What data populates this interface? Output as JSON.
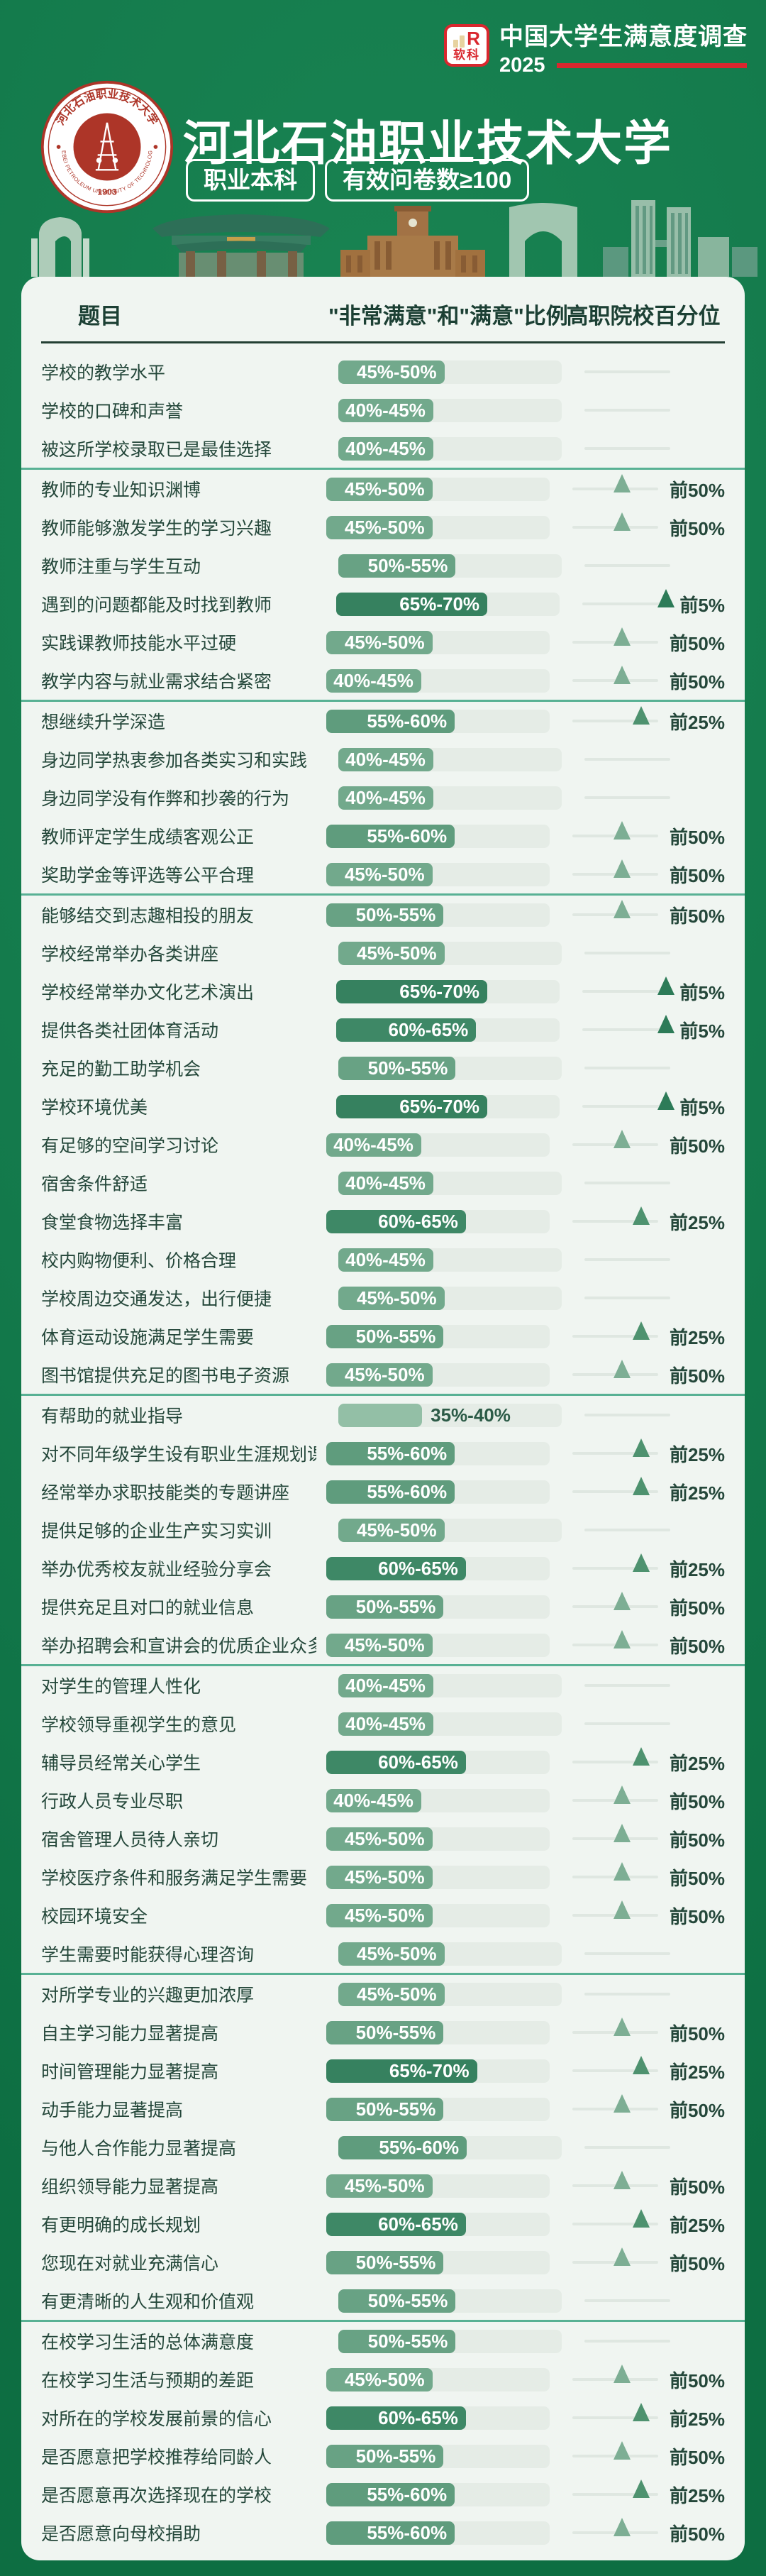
{
  "brand": {
    "logo_text": "软科",
    "logo_letter": "R",
    "survey_title": "中国大学生满意度调查",
    "year": "2025"
  },
  "university": {
    "name": "河北石油职业技术大学",
    "seal_top_text": "河北石油职业技术大学",
    "seal_bottom_text": "HEBEI PETROLEUM UNIVERSITY OF TECHNOLOGY",
    "seal_year": "1903"
  },
  "badges": [
    "职业本科",
    "有效问卷数≥100"
  ],
  "table": {
    "col_question": "题目",
    "col_ratio": "\"非常满意\"和\"满意\"比例",
    "col_percentile": "高职院校百分位"
  },
  "colors": {
    "page_bg": "#13794b",
    "card_bg": "#f0f5f1",
    "accent_red": "#d9272e",
    "seal_red": "#ad3528",
    "text_dark": "#24473a",
    "bar_track": "#e5ece6",
    "bar_label_inside": "#ffffff",
    "bar_label_outside": "#2c5b47",
    "divider": "#58b194",
    "header_rule": "#233f33",
    "pct_line": "#dfe7e1",
    "fill_by_low": {
      "35": "#93bfa6",
      "40": "#72a98c",
      "45": "#72a98c",
      "50": "#68a284",
      "55": "#5f9c7d",
      "60": "#3e8866",
      "65": "#36815f"
    },
    "tier_colors": {
      "前5%": "#2d7b58",
      "前25%": "#4e926f",
      "前50%": "#7dae94"
    },
    "tier_positions": {
      "前5%": 97,
      "前25%": 80,
      "前50%": 58
    }
  },
  "chart_data": {
    "type": "bar",
    "unit": "%",
    "value_axis": "\"非常满意\"和\"满意\"比例",
    "percentile_axis": "高职院校百分位",
    "sections": [
      {
        "rows": [
          {
            "label": "学校的教学水平",
            "range": "45%-50%",
            "low": 45,
            "high": 50,
            "percentile": null
          },
          {
            "label": "学校的口碑和声誉",
            "range": "40%-45%",
            "low": 40,
            "high": 45,
            "percentile": null
          },
          {
            "label": "被这所学校录取已是最佳选择",
            "range": "40%-45%",
            "low": 40,
            "high": 45,
            "percentile": null
          }
        ]
      },
      {
        "rows": [
          {
            "label": "教师的专业知识渊博",
            "range": "45%-50%",
            "low": 45,
            "high": 50,
            "percentile": "前50%"
          },
          {
            "label": "教师能够激发学生的学习兴趣",
            "range": "45%-50%",
            "low": 45,
            "high": 50,
            "percentile": "前50%"
          },
          {
            "label": "教师注重与学生互动",
            "range": "50%-55%",
            "low": 50,
            "high": 55,
            "percentile": null
          },
          {
            "label": "遇到的问题都能及时找到教师",
            "range": "65%-70%",
            "low": 65,
            "high": 70,
            "percentile": "前5%"
          },
          {
            "label": "实践课教师技能水平过硬",
            "range": "45%-50%",
            "low": 45,
            "high": 50,
            "percentile": "前50%"
          },
          {
            "label": "教学内容与就业需求结合紧密",
            "range": "40%-45%",
            "low": 40,
            "high": 45,
            "percentile": "前50%"
          }
        ]
      },
      {
        "rows": [
          {
            "label": "想继续升学深造",
            "range": "55%-60%",
            "low": 55,
            "high": 60,
            "percentile": "前25%"
          },
          {
            "label": "身边同学热衷参加各类实习和实践",
            "range": "40%-45%",
            "low": 40,
            "high": 45,
            "percentile": null
          },
          {
            "label": "身边同学没有作弊和抄袭的行为",
            "range": "40%-45%",
            "low": 40,
            "high": 45,
            "percentile": null
          },
          {
            "label": "教师评定学生成绩客观公正",
            "range": "55%-60%",
            "low": 55,
            "high": 60,
            "percentile": "前50%"
          },
          {
            "label": "奖助学金等评选等公平合理",
            "range": "45%-50%",
            "low": 45,
            "high": 50,
            "percentile": "前50%"
          }
        ]
      },
      {
        "rows": [
          {
            "label": "能够结交到志趣相投的朋友",
            "range": "50%-55%",
            "low": 50,
            "high": 55,
            "percentile": "前50%"
          },
          {
            "label": "学校经常举办各类讲座",
            "range": "45%-50%",
            "low": 45,
            "high": 50,
            "percentile": null
          },
          {
            "label": "学校经常举办文化艺术演出",
            "range": "65%-70%",
            "low": 65,
            "high": 70,
            "percentile": "前5%"
          },
          {
            "label": "提供各类社团体育活动",
            "range": "60%-65%",
            "low": 60,
            "high": 65,
            "percentile": "前5%"
          },
          {
            "label": "充足的勤工助学机会",
            "range": "50%-55%",
            "low": 50,
            "high": 55,
            "percentile": null
          },
          {
            "label": "学校环境优美",
            "range": "65%-70%",
            "low": 65,
            "high": 70,
            "percentile": "前5%"
          },
          {
            "label": "有足够的空间学习讨论",
            "range": "40%-45%",
            "low": 40,
            "high": 45,
            "percentile": "前50%"
          },
          {
            "label": "宿舍条件舒适",
            "range": "40%-45%",
            "low": 40,
            "high": 45,
            "percentile": null
          },
          {
            "label": "食堂食物选择丰富",
            "range": "60%-65%",
            "low": 60,
            "high": 65,
            "percentile": "前25%"
          },
          {
            "label": "校内购物便利、价格合理",
            "range": "40%-45%",
            "low": 40,
            "high": 45,
            "percentile": null
          },
          {
            "label": "学校周边交通发达，出行便捷",
            "range": "45%-50%",
            "low": 45,
            "high": 50,
            "percentile": null
          },
          {
            "label": "体育运动设施满足学生需要",
            "range": "50%-55%",
            "low": 50,
            "high": 55,
            "percentile": "前25%"
          },
          {
            "label": "图书馆提供充足的图书电子资源",
            "range": "45%-50%",
            "low": 45,
            "high": 50,
            "percentile": "前50%"
          }
        ]
      },
      {
        "rows": [
          {
            "label": "有帮助的就业指导",
            "range": "35%-40%",
            "low": 35,
            "high": 40,
            "percentile": null
          },
          {
            "label": "对不同年级学生设有职业生涯规划课",
            "range": "55%-60%",
            "low": 55,
            "high": 60,
            "percentile": "前25%"
          },
          {
            "label": "经常举办求职技能类的专题讲座",
            "range": "55%-60%",
            "low": 55,
            "high": 60,
            "percentile": "前25%"
          },
          {
            "label": "提供足够的企业生产实习实训",
            "range": "45%-50%",
            "low": 45,
            "high": 50,
            "percentile": null
          },
          {
            "label": "举办优秀校友就业经验分享会",
            "range": "60%-65%",
            "low": 60,
            "high": 65,
            "percentile": "前25%"
          },
          {
            "label": "提供充足且对口的就业信息",
            "range": "50%-55%",
            "low": 50,
            "high": 55,
            "percentile": "前50%"
          },
          {
            "label": "举办招聘会和宣讲会的优质企业众多",
            "range": "45%-50%",
            "low": 45,
            "high": 50,
            "percentile": "前50%"
          }
        ]
      },
      {
        "rows": [
          {
            "label": "对学生的管理人性化",
            "range": "40%-45%",
            "low": 40,
            "high": 45,
            "percentile": null
          },
          {
            "label": "学校领导重视学生的意见",
            "range": "40%-45%",
            "low": 40,
            "high": 45,
            "percentile": null
          },
          {
            "label": "辅导员经常关心学生",
            "range": "60%-65%",
            "low": 60,
            "high": 65,
            "percentile": "前25%"
          },
          {
            "label": "行政人员专业尽职",
            "range": "40%-45%",
            "low": 40,
            "high": 45,
            "percentile": "前50%"
          },
          {
            "label": "宿舍管理人员待人亲切",
            "range": "45%-50%",
            "low": 45,
            "high": 50,
            "percentile": "前50%"
          },
          {
            "label": "学校医疗条件和服务满足学生需要",
            "range": "45%-50%",
            "low": 45,
            "high": 50,
            "percentile": "前50%"
          },
          {
            "label": "校园环境安全",
            "range": "45%-50%",
            "low": 45,
            "high": 50,
            "percentile": "前50%"
          },
          {
            "label": "学生需要时能获得心理咨询",
            "range": "45%-50%",
            "low": 45,
            "high": 50,
            "percentile": null
          }
        ]
      },
      {
        "rows": [
          {
            "label": "对所学专业的兴趣更加浓厚",
            "range": "45%-50%",
            "low": 45,
            "high": 50,
            "percentile": null
          },
          {
            "label": "自主学习能力显著提高",
            "range": "50%-55%",
            "low": 50,
            "high": 55,
            "percentile": "前50%"
          },
          {
            "label": "时间管理能力显著提高",
            "range": "65%-70%",
            "low": 65,
            "high": 70,
            "percentile": "前25%"
          },
          {
            "label": "动手能力显著提高",
            "range": "50%-55%",
            "low": 50,
            "high": 55,
            "percentile": "前50%"
          },
          {
            "label": "与他人合作能力显著提高",
            "range": "55%-60%",
            "low": 55,
            "high": 60,
            "percentile": null
          },
          {
            "label": "组织领导能力显著提高",
            "range": "45%-50%",
            "low": 45,
            "high": 50,
            "percentile": "前50%"
          },
          {
            "label": "有更明确的成长规划",
            "range": "60%-65%",
            "low": 60,
            "high": 65,
            "percentile": "前25%"
          },
          {
            "label": "您现在对就业充满信心",
            "range": "50%-55%",
            "low": 50,
            "high": 55,
            "percentile": "前50%"
          },
          {
            "label": "有更清晰的人生观和价值观",
            "range": "50%-55%",
            "low": 50,
            "high": 55,
            "percentile": null
          }
        ]
      },
      {
        "rows": [
          {
            "label": "在校学习生活的总体满意度",
            "range": "50%-55%",
            "low": 50,
            "high": 55,
            "percentile": null
          },
          {
            "label": "在校学习生活与预期的差距",
            "range": "45%-50%",
            "low": 45,
            "high": 50,
            "percentile": "前50%"
          },
          {
            "label": "对所在的学校发展前景的信心",
            "range": "60%-65%",
            "low": 60,
            "high": 65,
            "percentile": "前25%"
          },
          {
            "label": "是否愿意把学校推荐给同龄人",
            "range": "50%-55%",
            "low": 50,
            "high": 55,
            "percentile": "前50%"
          },
          {
            "label": "是否愿意再次选择现在的学校",
            "range": "55%-60%",
            "low": 55,
            "high": 60,
            "percentile": "前25%"
          },
          {
            "label": "是否愿意向母校捐助",
            "range": "55%-60%",
            "low": 55,
            "high": 60,
            "percentile": "前50%"
          }
        ]
      }
    ]
  }
}
